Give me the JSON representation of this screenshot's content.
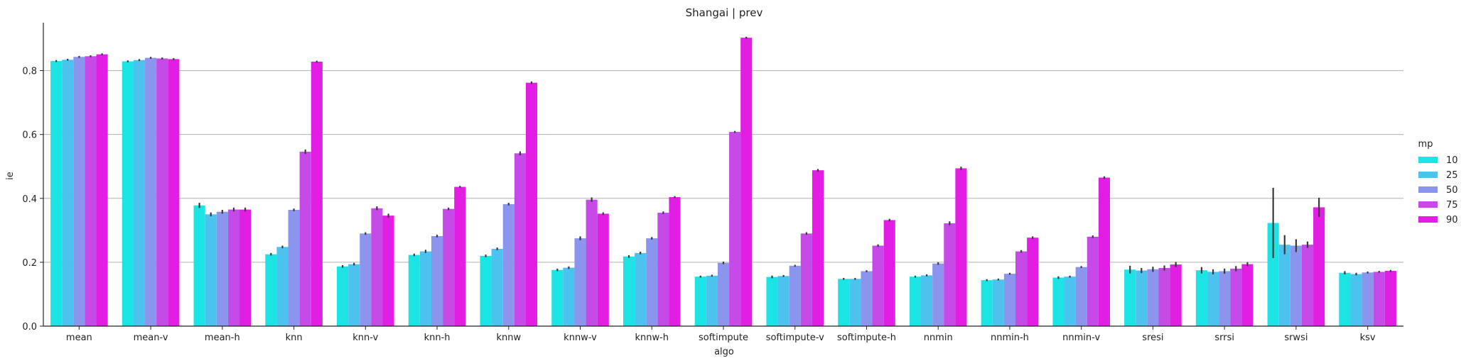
{
  "chart_data": {
    "type": "bar",
    "title": "Shangai | prev",
    "xlabel": "algo",
    "ylabel": "ie",
    "ylim": [
      0,
      0.95
    ],
    "yticks": [
      "0.0",
      "0.2",
      "0.4",
      "0.6",
      "0.8"
    ],
    "grid": "horizontal",
    "legend_position": "right",
    "legend_title": "mp",
    "categories": [
      "mean",
      "mean-v",
      "mean-h",
      "knn",
      "knn-v",
      "knn-h",
      "knnw",
      "knnw-v",
      "knnw-h",
      "softimpute",
      "softimpute-v",
      "softimpute-h",
      "nnmin",
      "nnmin-h",
      "nnmin-v",
      "sresi",
      "srrsi",
      "srwsi",
      "ksv"
    ],
    "series": [
      {
        "name": "10",
        "color": "#1de4e4",
        "values": [
          0.83,
          0.829,
          0.378,
          0.225,
          0.187,
          0.223,
          0.22,
          0.176,
          0.218,
          0.155,
          0.154,
          0.148,
          0.155,
          0.144,
          0.152,
          0.177,
          0.175,
          0.323,
          0.167
        ],
        "err": [
          0.003,
          0.003,
          0.008,
          0.004,
          0.004,
          0.004,
          0.004,
          0.004,
          0.004,
          0.003,
          0.004,
          0.003,
          0.003,
          0.003,
          0.004,
          0.012,
          0.01,
          0.11,
          0.005
        ]
      },
      {
        "name": "25",
        "color": "#4cc3ee",
        "values": [
          0.834,
          0.833,
          0.35,
          0.248,
          0.194,
          0.234,
          0.242,
          0.183,
          0.229,
          0.158,
          0.157,
          0.148,
          0.159,
          0.146,
          0.155,
          0.174,
          0.17,
          0.255,
          0.163
        ],
        "err": [
          0.003,
          0.003,
          0.006,
          0.004,
          0.004,
          0.005,
          0.004,
          0.004,
          0.004,
          0.003,
          0.003,
          0.003,
          0.003,
          0.003,
          0.003,
          0.008,
          0.008,
          0.03,
          0.004
        ]
      },
      {
        "name": "50",
        "color": "#8c95ed",
        "values": [
          0.843,
          0.84,
          0.358,
          0.364,
          0.29,
          0.282,
          0.382,
          0.275,
          0.275,
          0.198,
          0.189,
          0.172,
          0.196,
          0.164,
          0.185,
          0.178,
          0.172,
          0.252,
          0.168
        ],
        "err": [
          0.003,
          0.003,
          0.006,
          0.004,
          0.004,
          0.004,
          0.004,
          0.006,
          0.004,
          0.004,
          0.003,
          0.003,
          0.004,
          0.003,
          0.003,
          0.008,
          0.008,
          0.02,
          0.003
        ]
      },
      {
        "name": "75",
        "color": "#c54ae8",
        "values": [
          0.845,
          0.838,
          0.365,
          0.546,
          0.369,
          0.367,
          0.541,
          0.396,
          0.355,
          0.608,
          0.29,
          0.252,
          0.322,
          0.234,
          0.28,
          0.182,
          0.18,
          0.255,
          0.17
        ],
        "err": [
          0.003,
          0.003,
          0.006,
          0.007,
          0.006,
          0.004,
          0.006,
          0.007,
          0.004,
          0.003,
          0.004,
          0.004,
          0.006,
          0.004,
          0.004,
          0.008,
          0.008,
          0.01,
          0.003
        ]
      },
      {
        "name": "90",
        "color": "#e21ee2",
        "values": [
          0.851,
          0.836,
          0.365,
          0.828,
          0.346,
          0.436,
          0.762,
          0.352,
          0.404,
          0.903,
          0.488,
          0.332,
          0.494,
          0.277,
          0.465,
          0.193,
          0.194,
          0.372,
          0.173
        ],
        "err": [
          0.003,
          0.003,
          0.006,
          0.003,
          0.006,
          0.003,
          0.004,
          0.004,
          0.003,
          0.003,
          0.004,
          0.004,
          0.005,
          0.004,
          0.004,
          0.008,
          0.006,
          0.03,
          0.003
        ]
      }
    ]
  }
}
